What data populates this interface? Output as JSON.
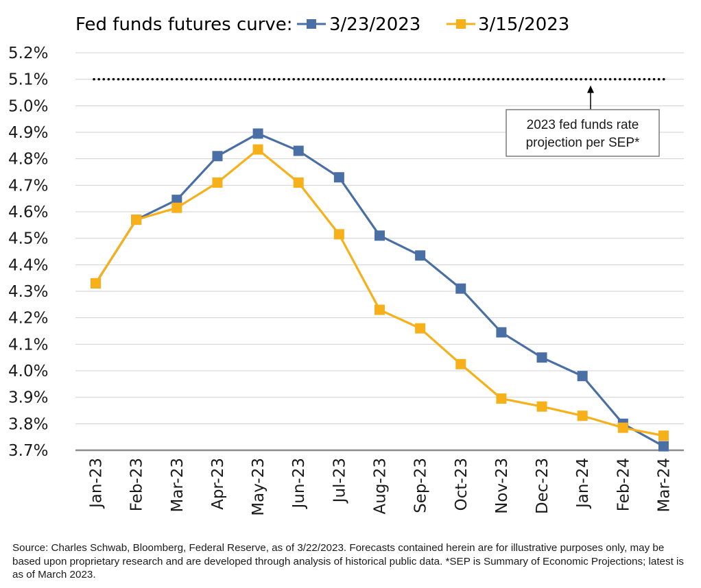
{
  "chart_data": {
    "type": "line",
    "title": "Fed funds futures curve:",
    "categories": [
      "Jan-23",
      "Feb-23",
      "Mar-23",
      "Apr-23",
      "May-23",
      "Jun-23",
      "Jul-23",
      "Aug-23",
      "Sep-23",
      "Oct-23",
      "Nov-23",
      "Dec-23",
      "Jan-24",
      "Feb-24",
      "Mar-24"
    ],
    "series": [
      {
        "name": "3/23/2023",
        "color": "#4a6fa5",
        "values": [
          4.33,
          4.57,
          4.645,
          4.81,
          4.895,
          4.83,
          4.73,
          4.51,
          4.435,
          4.31,
          4.145,
          4.05,
          3.98,
          3.8,
          3.715
        ]
      },
      {
        "name": "3/15/2023",
        "color": "#f5b01a",
        "values": [
          4.33,
          4.57,
          4.615,
          4.71,
          4.835,
          4.71,
          4.515,
          4.23,
          4.16,
          4.025,
          3.895,
          3.865,
          3.83,
          3.785,
          3.755
        ]
      }
    ],
    "yticks": [
      "3.7%",
      "3.8%",
      "3.9%",
      "4.0%",
      "4.1%",
      "4.2%",
      "4.3%",
      "4.4%",
      "4.5%",
      "4.6%",
      "4.7%",
      "4.8%",
      "4.9%",
      "5.0%",
      "5.1%",
      "5.2%"
    ],
    "ylim": [
      3.7,
      5.2
    ],
    "reference_line": {
      "value": 5.1,
      "style": "dotted"
    },
    "annotation": {
      "lines": [
        "2023 fed funds rate",
        "projection per SEP*"
      ]
    },
    "legend_placement": "top",
    "grid": true
  },
  "source_note": "Source: Charles Schwab, Bloomberg, Federal Reserve, as of 3/22/2023. Forecasts contained herein are for illustrative purposes only, may be based upon proprietary research and are developed through analysis of historical public data. *SEP is Summary of Economic Projections; latest is as of March 2023."
}
